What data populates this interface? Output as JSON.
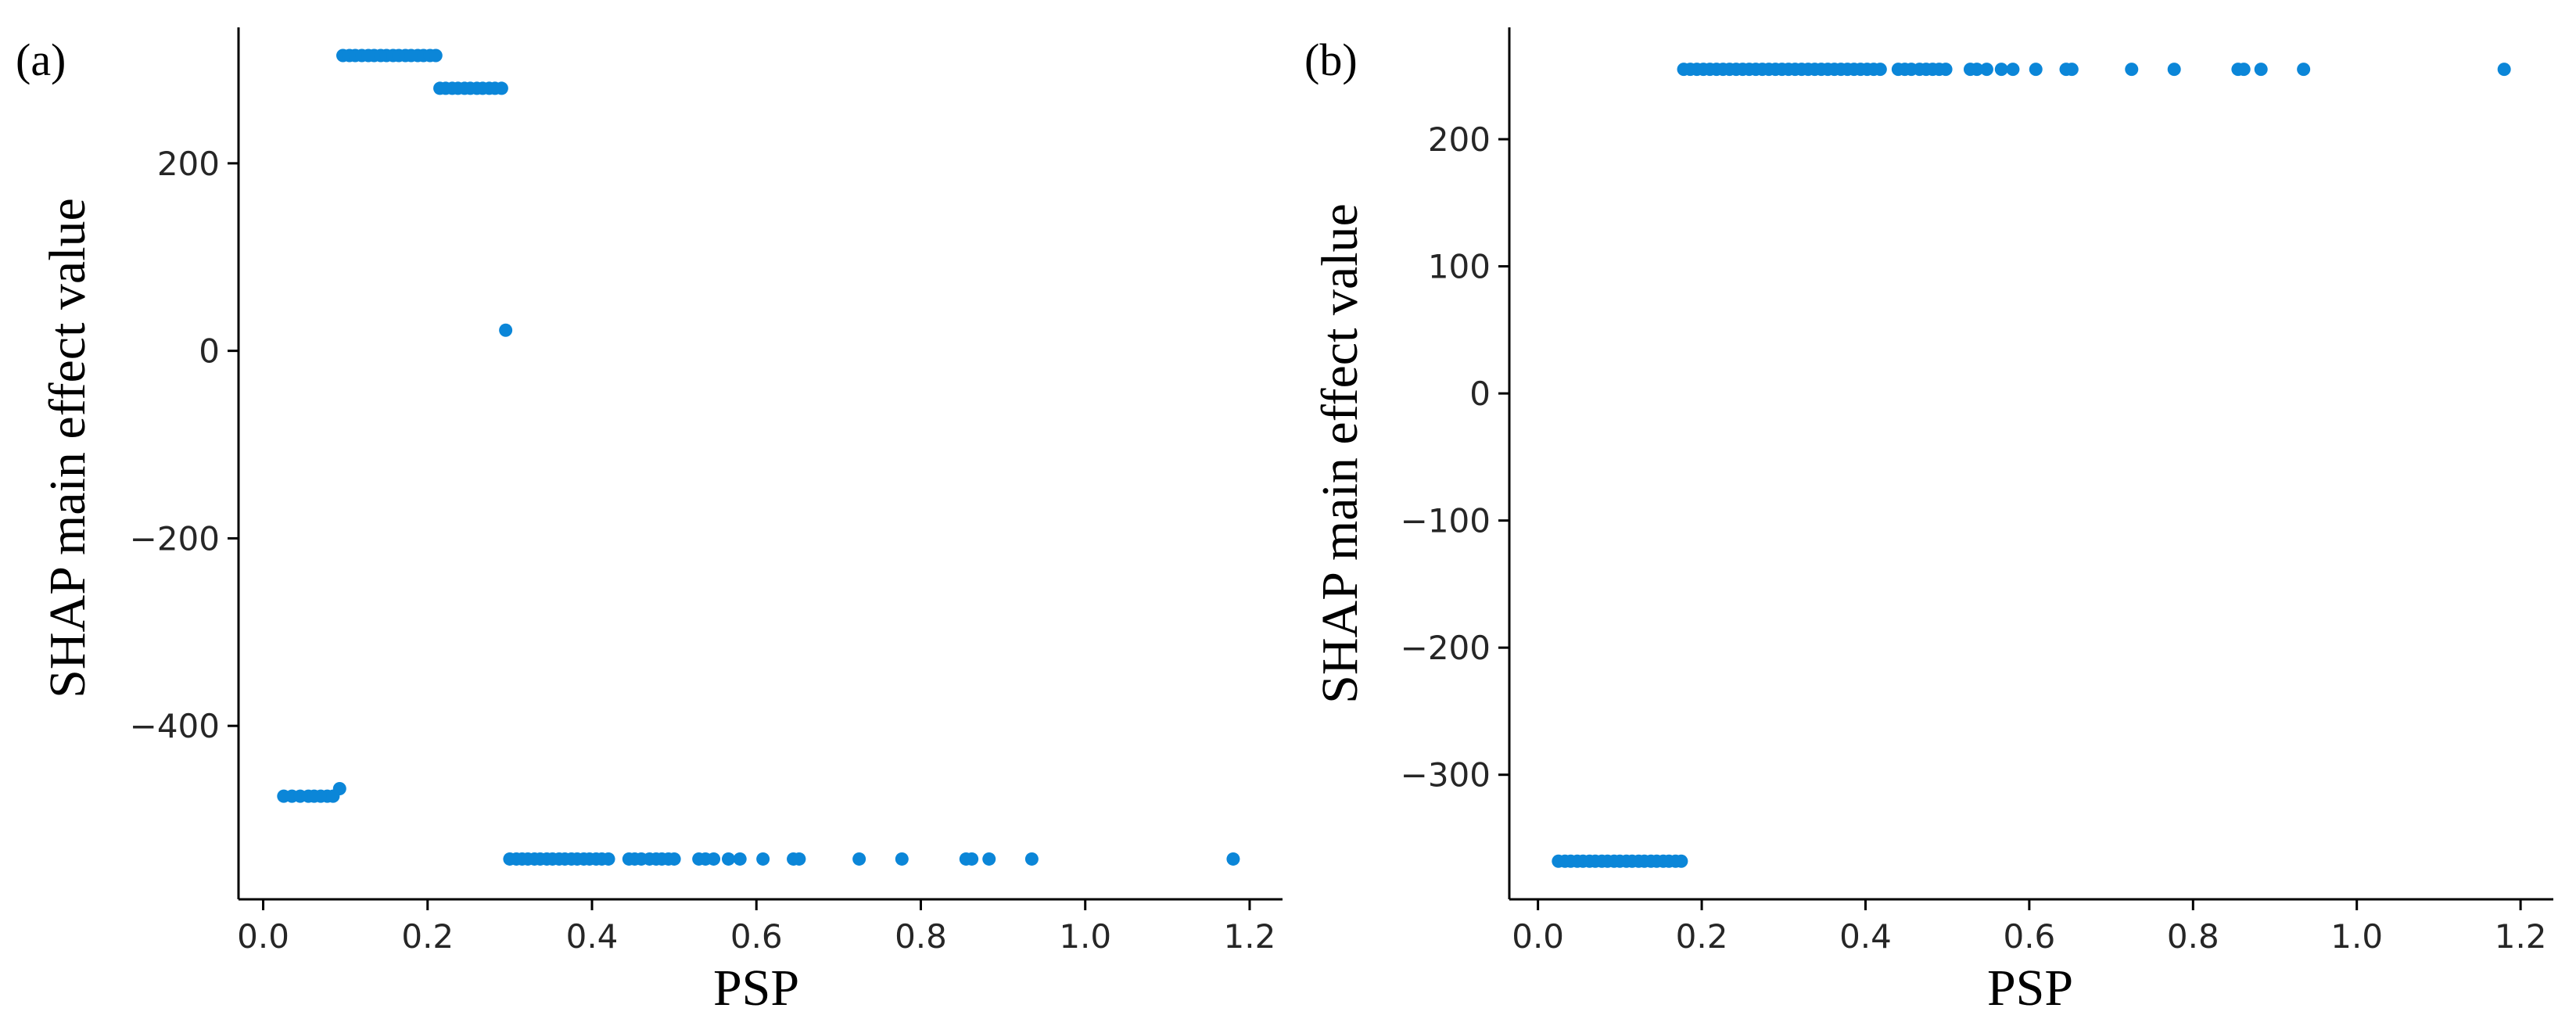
{
  "figure": {
    "point_color": "#0b86d8"
  },
  "chart_data": [
    {
      "type": "scatter",
      "panel_label": "(a)",
      "title": "",
      "xlabel": "PSP",
      "ylabel": "SHAP main effect value",
      "xlim": [
        -0.03,
        1.24
      ],
      "ylim": [
        -585,
        345
      ],
      "xticks": [
        0.0,
        0.2,
        0.4,
        0.6,
        0.8,
        1.0,
        1.2
      ],
      "yticks": [
        -400,
        -200,
        0,
        200
      ],
      "x_tick_labels": [
        "0.0",
        "0.2",
        "0.4",
        "0.6",
        "0.8",
        "1.0",
        "1.2"
      ],
      "y_tick_labels": [
        "−400",
        "−200",
        "0",
        "200"
      ],
      "grid": false,
      "legend": "none",
      "points": [
        [
          0.025,
          -475
        ],
        [
          0.035,
          -475
        ],
        [
          0.045,
          -475
        ],
        [
          0.055,
          -475
        ],
        [
          0.062,
          -475
        ],
        [
          0.07,
          -475
        ],
        [
          0.078,
          -475
        ],
        [
          0.085,
          -475
        ],
        [
          0.093,
          -467
        ],
        [
          0.097,
          315
        ],
        [
          0.105,
          315
        ],
        [
          0.112,
          315
        ],
        [
          0.12,
          315
        ],
        [
          0.128,
          315
        ],
        [
          0.135,
          315
        ],
        [
          0.143,
          315
        ],
        [
          0.15,
          315
        ],
        [
          0.158,
          315
        ],
        [
          0.165,
          315
        ],
        [
          0.173,
          315
        ],
        [
          0.18,
          315
        ],
        [
          0.188,
          315
        ],
        [
          0.195,
          315
        ],
        [
          0.203,
          315
        ],
        [
          0.21,
          315
        ],
        [
          0.215,
          280
        ],
        [
          0.222,
          280
        ],
        [
          0.23,
          280
        ],
        [
          0.237,
          280
        ],
        [
          0.245,
          280
        ],
        [
          0.252,
          280
        ],
        [
          0.26,
          280
        ],
        [
          0.267,
          280
        ],
        [
          0.275,
          280
        ],
        [
          0.282,
          280
        ],
        [
          0.29,
          280
        ],
        [
          0.295,
          22
        ],
        [
          0.3,
          -542
        ],
        [
          0.308,
          -542
        ],
        [
          0.315,
          -542
        ],
        [
          0.322,
          -542
        ],
        [
          0.33,
          -542
        ],
        [
          0.337,
          -542
        ],
        [
          0.345,
          -542
        ],
        [
          0.352,
          -542
        ],
        [
          0.36,
          -542
        ],
        [
          0.367,
          -542
        ],
        [
          0.375,
          -542
        ],
        [
          0.382,
          -542
        ],
        [
          0.39,
          -542
        ],
        [
          0.397,
          -542
        ],
        [
          0.405,
          -542
        ],
        [
          0.412,
          -542
        ],
        [
          0.42,
          -542
        ],
        [
          0.445,
          -542
        ],
        [
          0.452,
          -542
        ],
        [
          0.46,
          -542
        ],
        [
          0.47,
          -542
        ],
        [
          0.478,
          -542
        ],
        [
          0.485,
          -542
        ],
        [
          0.493,
          -542
        ],
        [
          0.5,
          -542
        ],
        [
          0.53,
          -542
        ],
        [
          0.538,
          -542
        ],
        [
          0.548,
          -542
        ],
        [
          0.566,
          -542
        ],
        [
          0.58,
          -542
        ],
        [
          0.608,
          -542
        ],
        [
          0.645,
          -542
        ],
        [
          0.652,
          -542
        ],
        [
          0.725,
          -542
        ],
        [
          0.777,
          -542
        ],
        [
          0.855,
          -542
        ],
        [
          0.862,
          -542
        ],
        [
          0.883,
          -542
        ],
        [
          0.935,
          -542
        ],
        [
          1.18,
          -542
        ]
      ]
    },
    {
      "type": "scatter",
      "panel_label": "(b)",
      "title": "",
      "xlabel": "PSP",
      "ylabel": "SHAP main effect value",
      "xlim": [
        -0.035,
        1.24
      ],
      "ylim": [
        -398,
        288
      ],
      "xticks": [
        0.0,
        0.2,
        0.4,
        0.6,
        0.8,
        1.0,
        1.2
      ],
      "yticks": [
        -300,
        -200,
        -100,
        0,
        100,
        200
      ],
      "x_tick_labels": [
        "0.0",
        "0.2",
        "0.4",
        "0.6",
        "0.8",
        "1.0",
        "1.2"
      ],
      "y_tick_labels": [
        "−300",
        "−200",
        "−100",
        "0",
        "100",
        "200"
      ],
      "grid": false,
      "legend": "none",
      "points": [
        [
          0.025,
          -368
        ],
        [
          0.033,
          -368
        ],
        [
          0.04,
          -368
        ],
        [
          0.048,
          -368
        ],
        [
          0.055,
          -368
        ],
        [
          0.063,
          -368
        ],
        [
          0.07,
          -368
        ],
        [
          0.078,
          -368
        ],
        [
          0.085,
          -368
        ],
        [
          0.093,
          -368
        ],
        [
          0.1,
          -368
        ],
        [
          0.108,
          -368
        ],
        [
          0.115,
          -368
        ],
        [
          0.123,
          -368
        ],
        [
          0.13,
          -368
        ],
        [
          0.138,
          -368
        ],
        [
          0.145,
          -368
        ],
        [
          0.153,
          -368
        ],
        [
          0.16,
          -368
        ],
        [
          0.168,
          -368
        ],
        [
          0.175,
          -368
        ],
        [
          0.178,
          255
        ],
        [
          0.186,
          255
        ],
        [
          0.194,
          255
        ],
        [
          0.202,
          255
        ],
        [
          0.21,
          255
        ],
        [
          0.218,
          255
        ],
        [
          0.226,
          255
        ],
        [
          0.234,
          255
        ],
        [
          0.242,
          255
        ],
        [
          0.25,
          255
        ],
        [
          0.258,
          255
        ],
        [
          0.266,
          255
        ],
        [
          0.274,
          255
        ],
        [
          0.282,
          255
        ],
        [
          0.29,
          255
        ],
        [
          0.298,
          255
        ],
        [
          0.306,
          255
        ],
        [
          0.314,
          255
        ],
        [
          0.322,
          255
        ],
        [
          0.33,
          255
        ],
        [
          0.338,
          255
        ],
        [
          0.346,
          255
        ],
        [
          0.354,
          255
        ],
        [
          0.362,
          255
        ],
        [
          0.37,
          255
        ],
        [
          0.378,
          255
        ],
        [
          0.386,
          255
        ],
        [
          0.394,
          255
        ],
        [
          0.402,
          255
        ],
        [
          0.41,
          255
        ],
        [
          0.418,
          255
        ],
        [
          0.44,
          255
        ],
        [
          0.448,
          255
        ],
        [
          0.456,
          255
        ],
        [
          0.466,
          255
        ],
        [
          0.474,
          255
        ],
        [
          0.482,
          255
        ],
        [
          0.49,
          255
        ],
        [
          0.498,
          255
        ],
        [
          0.528,
          255
        ],
        [
          0.536,
          255
        ],
        [
          0.548,
          255
        ],
        [
          0.566,
          255
        ],
        [
          0.58,
          255
        ],
        [
          0.608,
          255
        ],
        [
          0.645,
          255
        ],
        [
          0.652,
          255
        ],
        [
          0.725,
          255
        ],
        [
          0.777,
          255
        ],
        [
          0.855,
          255
        ],
        [
          0.862,
          255
        ],
        [
          0.883,
          255
        ],
        [
          0.935,
          255
        ],
        [
          1.18,
          255
        ]
      ]
    }
  ]
}
